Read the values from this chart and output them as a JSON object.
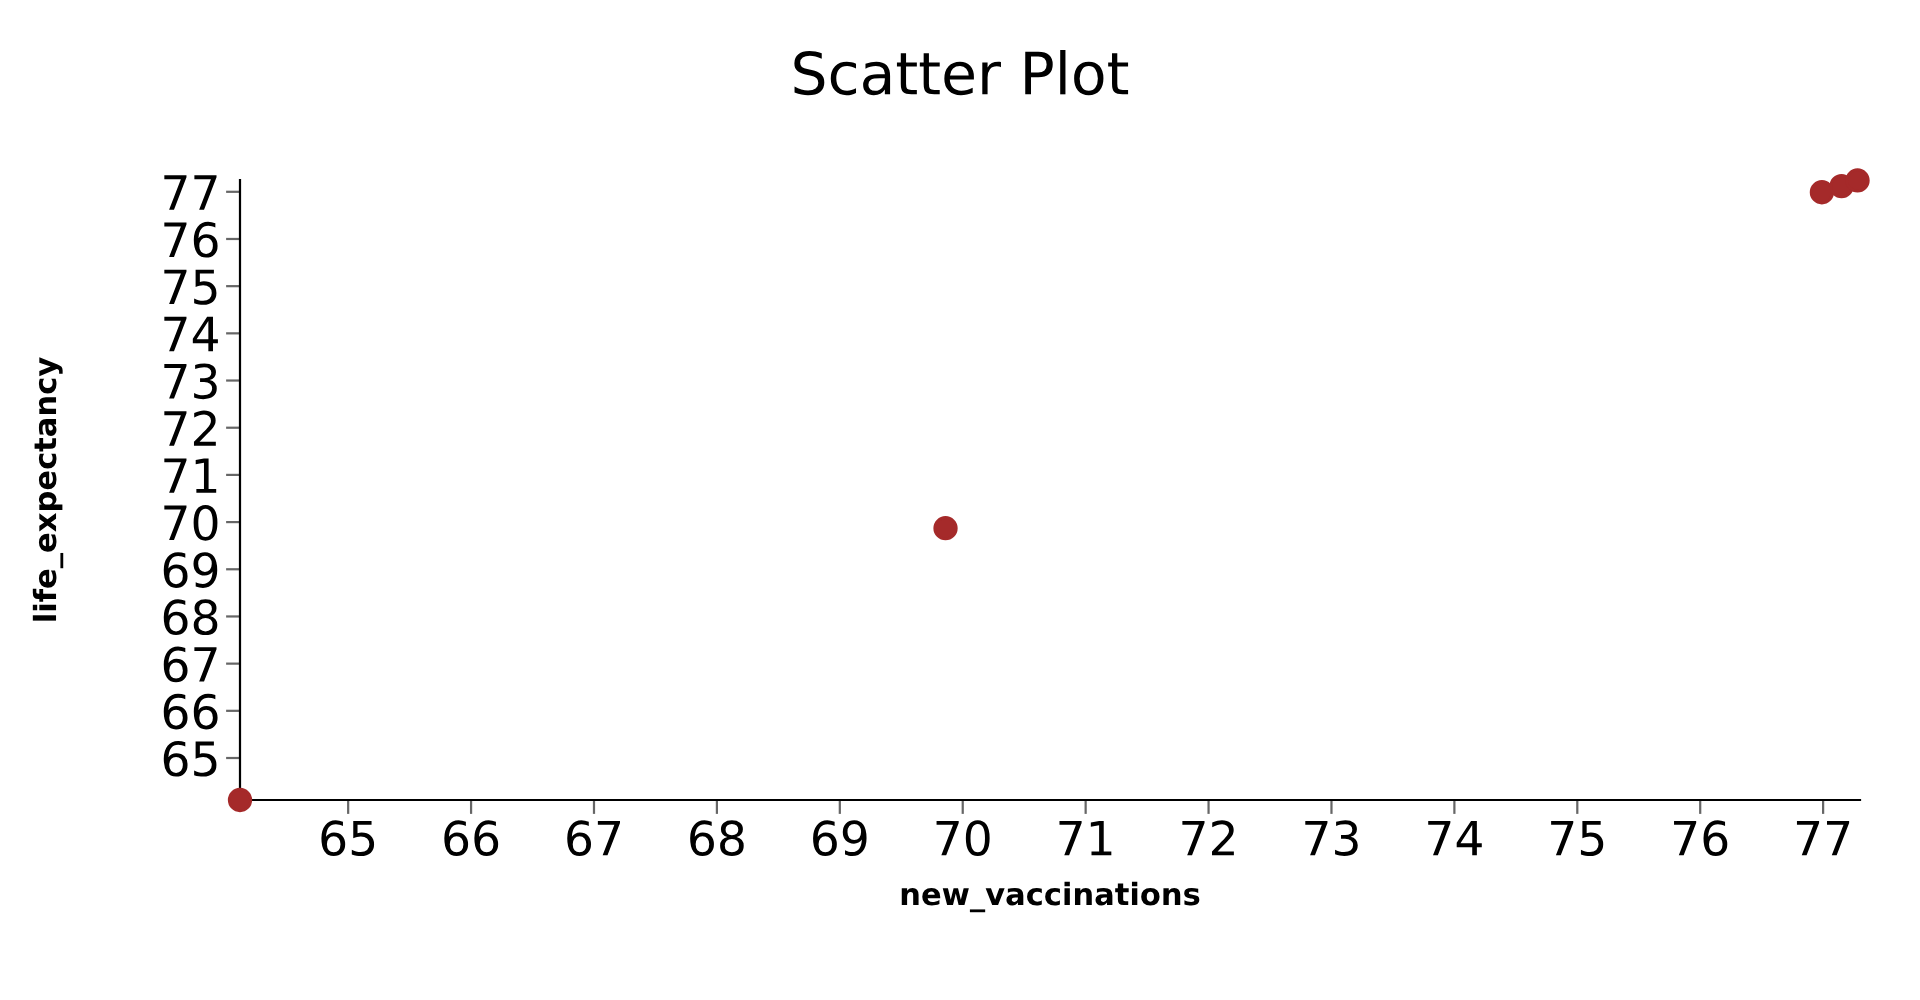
{
  "chart_data": {
    "type": "scatter",
    "title": "Scatter Plot",
    "xlabel": "new_vaccinations",
    "ylabel": "life_expectancy",
    "x": [
      64.12,
      69.86,
      76.99,
      77.15,
      77.28
    ],
    "series": [
      {
        "color": "#a52a2a",
        "values": [
          64.11,
          69.87,
          76.99,
          77.12,
          77.24
        ]
      }
    ],
    "xlim": [
      64.12,
      77.3
    ],
    "ylim": [
      64.11,
      77.25
    ],
    "xticks": [
      65,
      66,
      67,
      68,
      69,
      70,
      71,
      72,
      73,
      74,
      75,
      76,
      77
    ],
    "yticks": [
      65,
      66,
      67,
      68,
      69,
      70,
      71,
      72,
      73,
      74,
      75,
      76,
      77
    ],
    "grid": false,
    "marker": "circle"
  }
}
